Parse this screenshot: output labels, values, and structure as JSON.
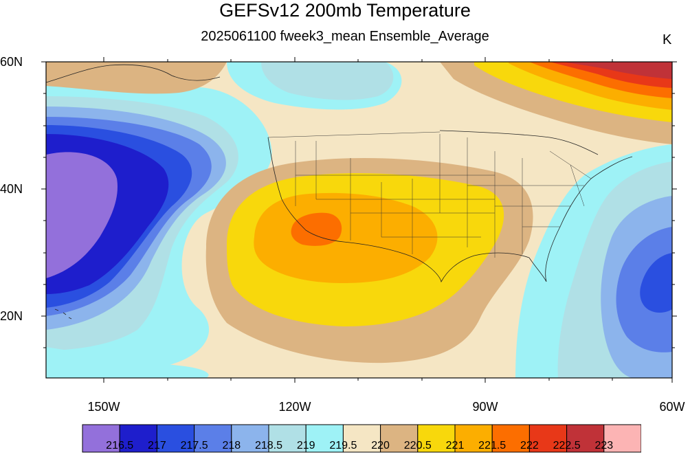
{
  "map": {
    "title": "GEFSv12 200mb Temperature",
    "subtitle": "2025061100 fweek3_mean Ensemble_Average",
    "units": "K",
    "lat_labels": [
      "60N",
      "40N",
      "20N"
    ],
    "lon_labels": [
      "150W",
      "120W",
      "90W",
      "60W"
    ],
    "extent": {
      "lon_min": -159,
      "lon_max": -60,
      "lat_min": 10,
      "lat_max": 60
    }
  },
  "colorbar": {
    "colors": [
      "#9370db",
      "#1e1ecc",
      "#2a4fe0",
      "#5b7fe8",
      "#8cb4ec",
      "#b0e0e6",
      "#9ef2f6",
      "#f5e6c4",
      "#dcb482",
      "#f8d80c",
      "#fcae00",
      "#fc6e00",
      "#e83818",
      "#c03238",
      "#fcb4b4"
    ],
    "labels": [
      "216.5",
      "217",
      "217.5",
      "218",
      "218.5",
      "219",
      "219.5",
      "220",
      "220.5",
      "221",
      "221.5",
      "222",
      "222.5",
      "223"
    ]
  }
}
